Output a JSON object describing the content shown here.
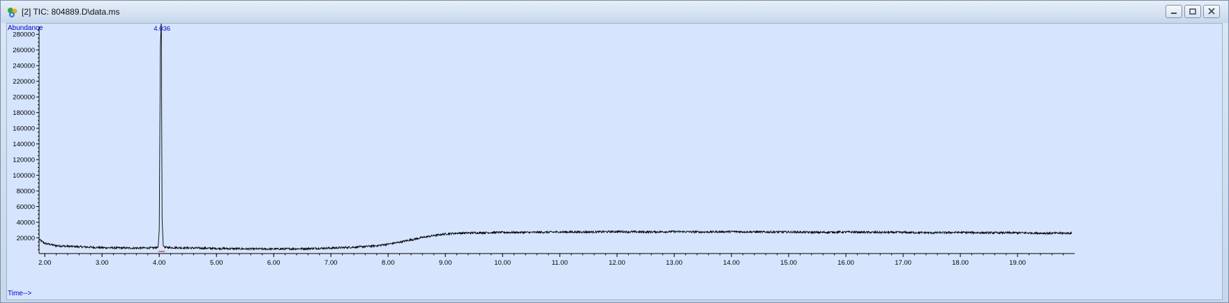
{
  "window": {
    "title": "[2] TIC: 804889.D\\data.ms",
    "icon": "chromatogram-app-icon",
    "controls": [
      "minimize",
      "restore",
      "close"
    ]
  },
  "colors": {
    "plot_background": "#d6e5fd",
    "trace": "#000000",
    "axis_labels": "#0000cc",
    "peak_label": "#0000cc",
    "peak_marker": "#cc0000"
  },
  "chart_data": {
    "type": "line",
    "ylabel": "Abundance",
    "xlabel": "Time-->",
    "xlim": [
      1.9,
      20.0
    ],
    "ylim": [
      0,
      290000
    ],
    "x_ticks": [
      "2.00",
      "3.00",
      "4.00",
      "5.00",
      "6.00",
      "7.00",
      "8.00",
      "9.00",
      "10.00",
      "11.00",
      "12.00",
      "13.00",
      "14.00",
      "15.00",
      "16.00",
      "17.00",
      "18.00",
      "19.00"
    ],
    "y_ticks": [
      "20000",
      "40000",
      "60000",
      "80000",
      "100000",
      "120000",
      "140000",
      "160000",
      "180000",
      "200000",
      "220000",
      "240000",
      "260000",
      "280000"
    ],
    "peak_labels": [
      {
        "time": 4.036,
        "label": "4.036"
      }
    ],
    "series": [
      {
        "x": [
          1.9,
          2.0,
          2.2,
          2.5,
          3.0,
          3.5,
          3.9,
          3.98,
          4.0,
          4.02,
          4.036,
          4.05,
          4.07,
          4.1,
          4.5,
          5.0,
          5.5,
          6.0,
          6.5,
          7.0,
          7.5,
          7.8,
          8.0,
          8.2,
          8.4,
          8.6,
          8.8,
          9.0,
          9.2,
          9.5,
          10.0,
          10.5,
          11.0,
          11.5,
          12.0,
          12.5,
          13.0,
          13.5,
          14.0,
          14.5,
          15.0,
          15.5,
          16.0,
          16.5,
          17.0,
          17.5,
          18.0,
          18.5,
          19.0,
          19.5,
          19.95
        ],
        "y": [
          18000,
          13000,
          10000,
          9000,
          7500,
          7000,
          7200,
          8000,
          30000,
          265000,
          298000,
          45000,
          10000,
          7800,
          7200,
          6500,
          6000,
          5800,
          6200,
          7000,
          8500,
          10000,
          12000,
          14500,
          17500,
          20500,
          23000,
          25000,
          26000,
          26500,
          27000,
          27000,
          27500,
          27500,
          28000,
          27500,
          28000,
          27500,
          28000,
          27500,
          27500,
          27000,
          27500,
          27000,
          27000,
          26500,
          27000,
          26500,
          26500,
          26000,
          26000
        ]
      }
    ]
  }
}
